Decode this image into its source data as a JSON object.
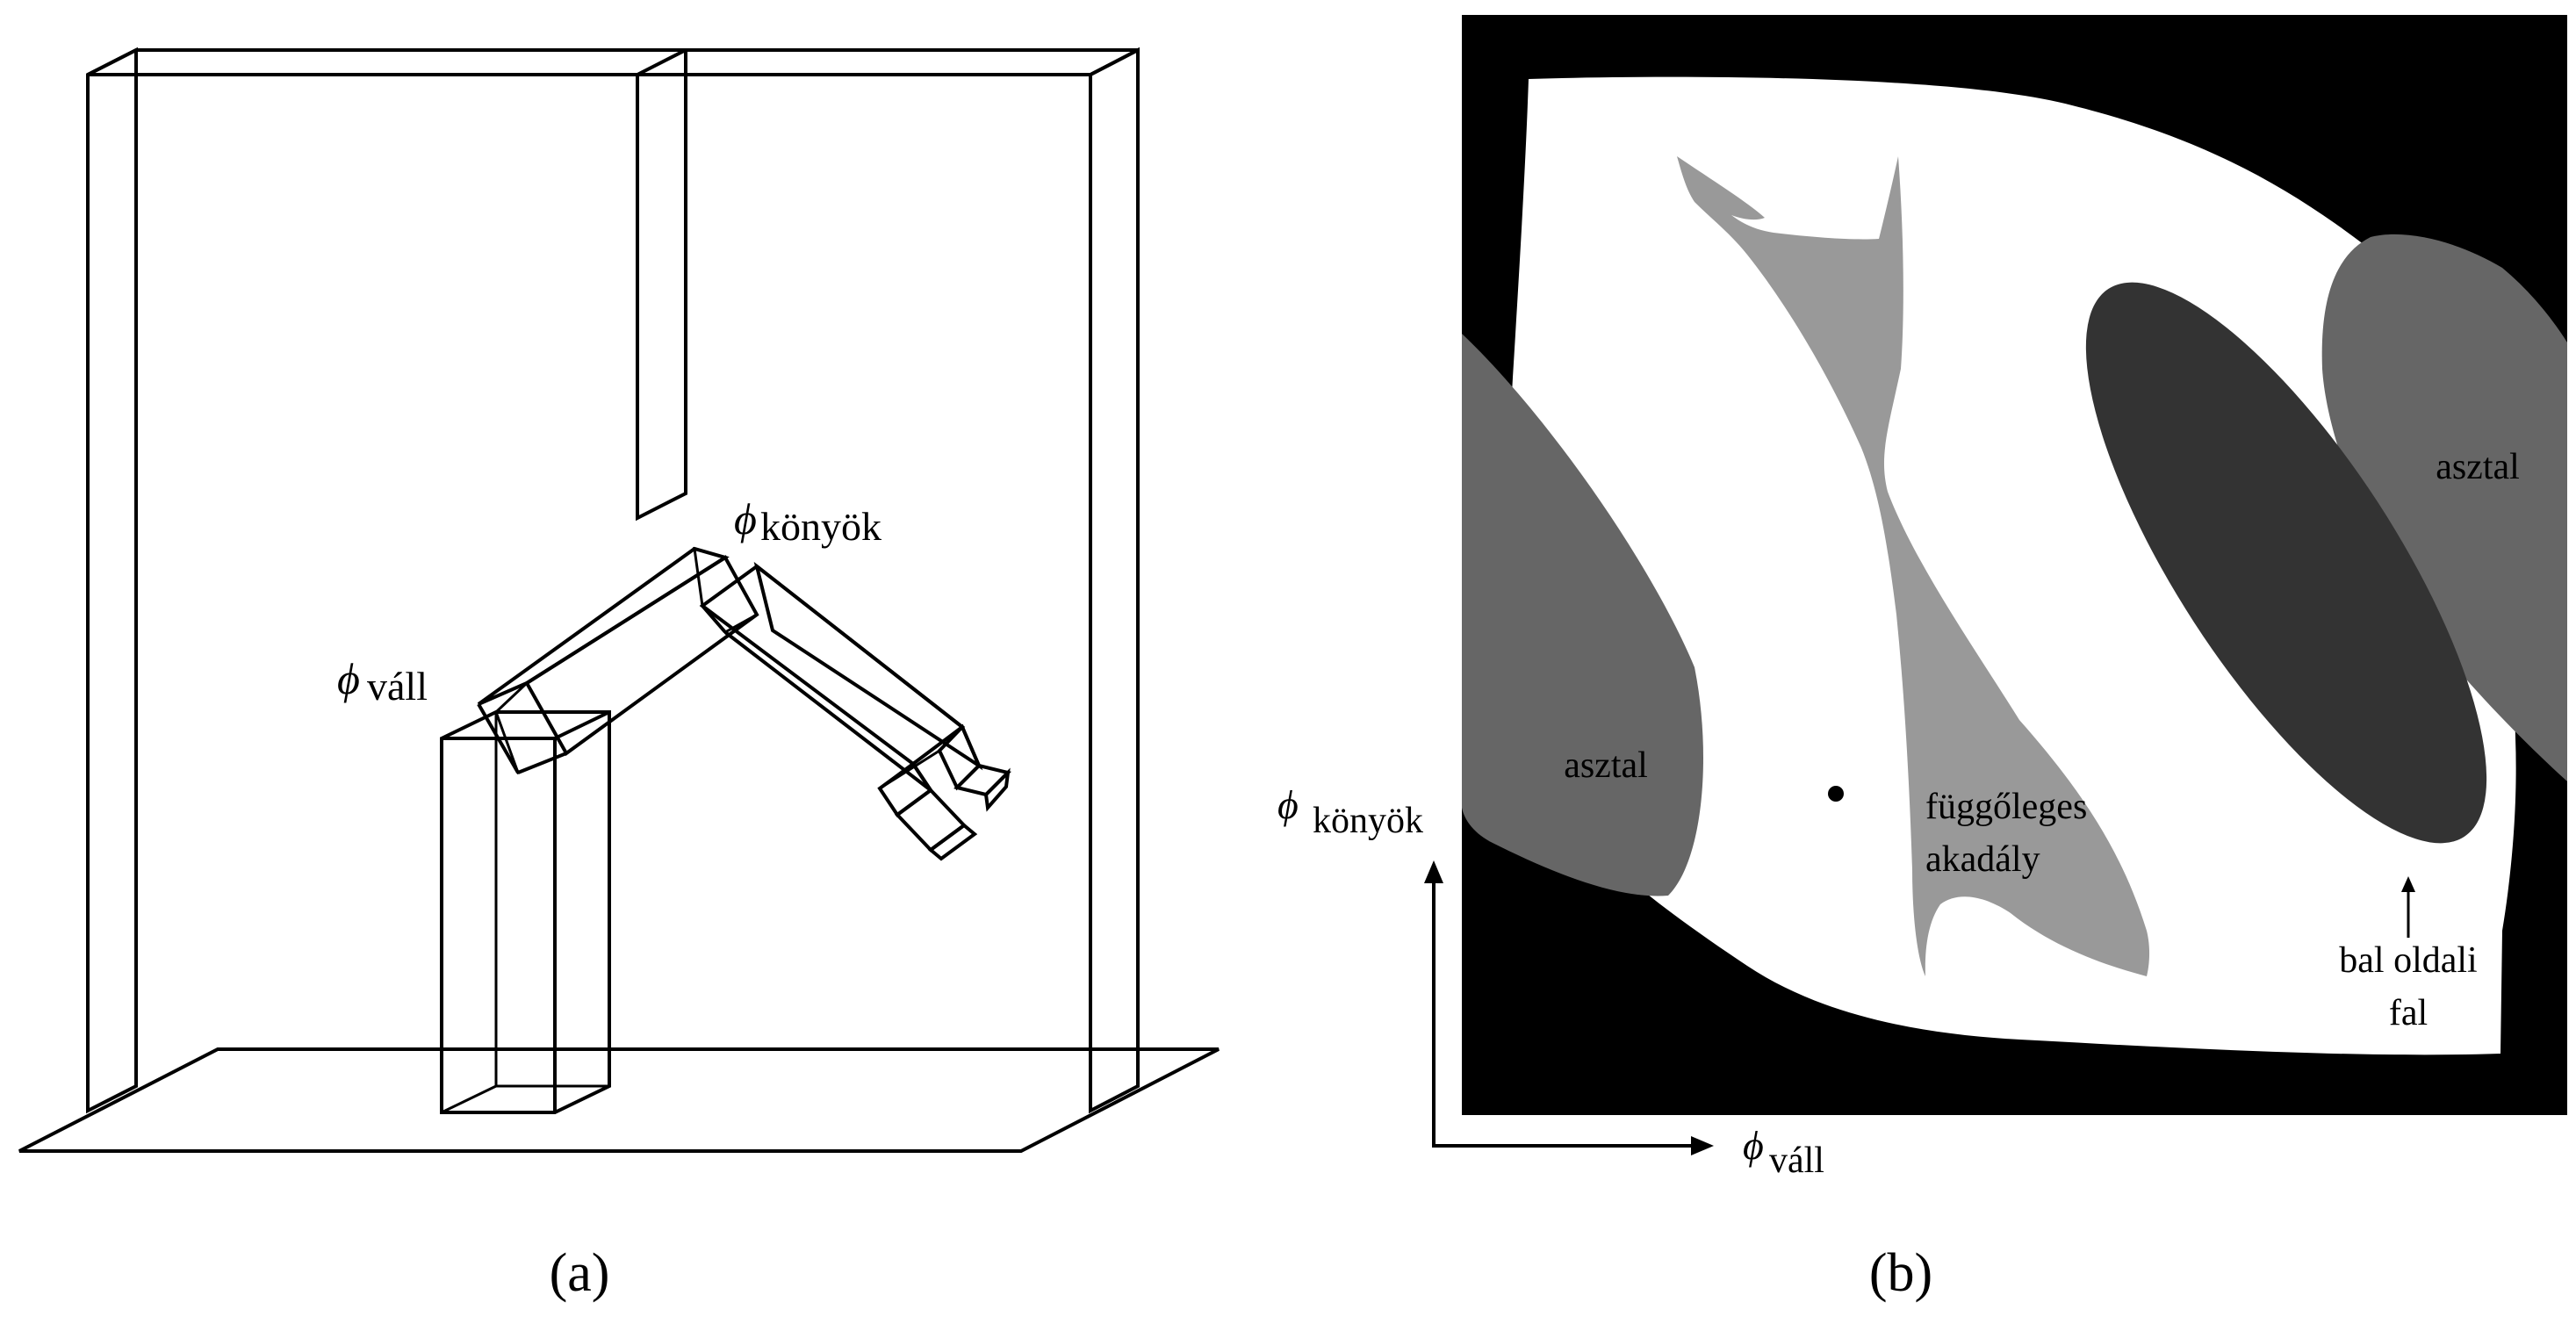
{
  "panel_a": {
    "caption": "(a)",
    "label_elbow_symbol": "ϕ",
    "label_elbow_sub": "könyök",
    "label_shoulder_symbol": "ϕ",
    "label_shoulder_sub": "váll"
  },
  "panel_b": {
    "caption": "(b)",
    "region_table_left": "asztal",
    "region_table_right": "asztal",
    "region_vertical_obstacle_line1": "függőleges",
    "region_vertical_obstacle_line2": "akadály",
    "region_left_wall_line1": "bal oldali",
    "region_left_wall_line2": "fal",
    "axis_y_symbol": "ϕ",
    "axis_y_sub": "könyök",
    "axis_x_symbol": "ϕ",
    "axis_x_sub": "váll",
    "colors": {
      "forbidden_outer": "#000000",
      "free_space": "#ffffff",
      "table": "#666666",
      "vertical_obstacle": "#999999",
      "left_wall": "#333333"
    }
  }
}
